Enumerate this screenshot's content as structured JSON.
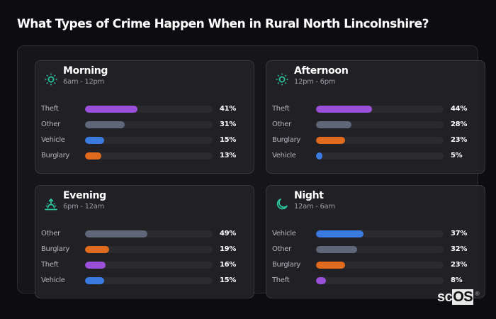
{
  "title": "What Types of Crime Happen When in Rural North Lincolnshire?",
  "colors": {
    "Theft": "#9b50d9",
    "Other": "#5f6778",
    "Vehicle": "#3b7be0",
    "Burglary": "#e06a1e",
    "icon": "#2bc49a"
  },
  "cards": [
    {
      "title": "Morning",
      "subtitle": "6am - 12pm",
      "icon": "sun-icon",
      "rows": [
        {
          "label": "Theft",
          "value": 41,
          "pct": "41%"
        },
        {
          "label": "Other",
          "value": 31,
          "pct": "31%"
        },
        {
          "label": "Vehicle",
          "value": 15,
          "pct": "15%"
        },
        {
          "label": "Burglary",
          "value": 13,
          "pct": "13%"
        }
      ]
    },
    {
      "title": "Afternoon",
      "subtitle": "12pm - 6pm",
      "icon": "sun-icon",
      "rows": [
        {
          "label": "Theft",
          "value": 44,
          "pct": "44%"
        },
        {
          "label": "Other",
          "value": 28,
          "pct": "28%"
        },
        {
          "label": "Burglary",
          "value": 23,
          "pct": "23%"
        },
        {
          "label": "Vehicle",
          "value": 5,
          "pct": "5%"
        }
      ]
    },
    {
      "title": "Evening",
      "subtitle": "6pm - 12am",
      "icon": "sunset-icon",
      "rows": [
        {
          "label": "Other",
          "value": 49,
          "pct": "49%"
        },
        {
          "label": "Burglary",
          "value": 19,
          "pct": "19%"
        },
        {
          "label": "Theft",
          "value": 16,
          "pct": "16%"
        },
        {
          "label": "Vehicle",
          "value": 15,
          "pct": "15%"
        }
      ]
    },
    {
      "title": "Night",
      "subtitle": "12am - 6am",
      "icon": "moon-icon",
      "rows": [
        {
          "label": "Vehicle",
          "value": 37,
          "pct": "37%"
        },
        {
          "label": "Other",
          "value": 32,
          "pct": "32%"
        },
        {
          "label": "Burglary",
          "value": 23,
          "pct": "23%"
        },
        {
          "label": "Theft",
          "value": 8,
          "pct": "8%"
        }
      ]
    }
  ],
  "logo": {
    "text_a": "sc",
    "text_b": "OS",
    "mark": "®"
  },
  "chart_data": [
    {
      "type": "bar",
      "orientation": "horizontal",
      "title": "Morning (6am - 12pm)",
      "categories": [
        "Theft",
        "Other",
        "Vehicle",
        "Burglary"
      ],
      "values": [
        41,
        31,
        15,
        13
      ],
      "unit": "%",
      "xlim": [
        0,
        100
      ]
    },
    {
      "type": "bar",
      "orientation": "horizontal",
      "title": "Afternoon (12pm - 6pm)",
      "categories": [
        "Theft",
        "Other",
        "Burglary",
        "Vehicle"
      ],
      "values": [
        44,
        28,
        23,
        5
      ],
      "unit": "%",
      "xlim": [
        0,
        100
      ]
    },
    {
      "type": "bar",
      "orientation": "horizontal",
      "title": "Evening (6pm - 12am)",
      "categories": [
        "Other",
        "Burglary",
        "Theft",
        "Vehicle"
      ],
      "values": [
        49,
        19,
        16,
        15
      ],
      "unit": "%",
      "xlim": [
        0,
        100
      ]
    },
    {
      "type": "bar",
      "orientation": "horizontal",
      "title": "Night (12am - 6am)",
      "categories": [
        "Vehicle",
        "Other",
        "Burglary",
        "Theft"
      ],
      "values": [
        37,
        32,
        23,
        8
      ],
      "unit": "%",
      "xlim": [
        0,
        100
      ]
    }
  ]
}
